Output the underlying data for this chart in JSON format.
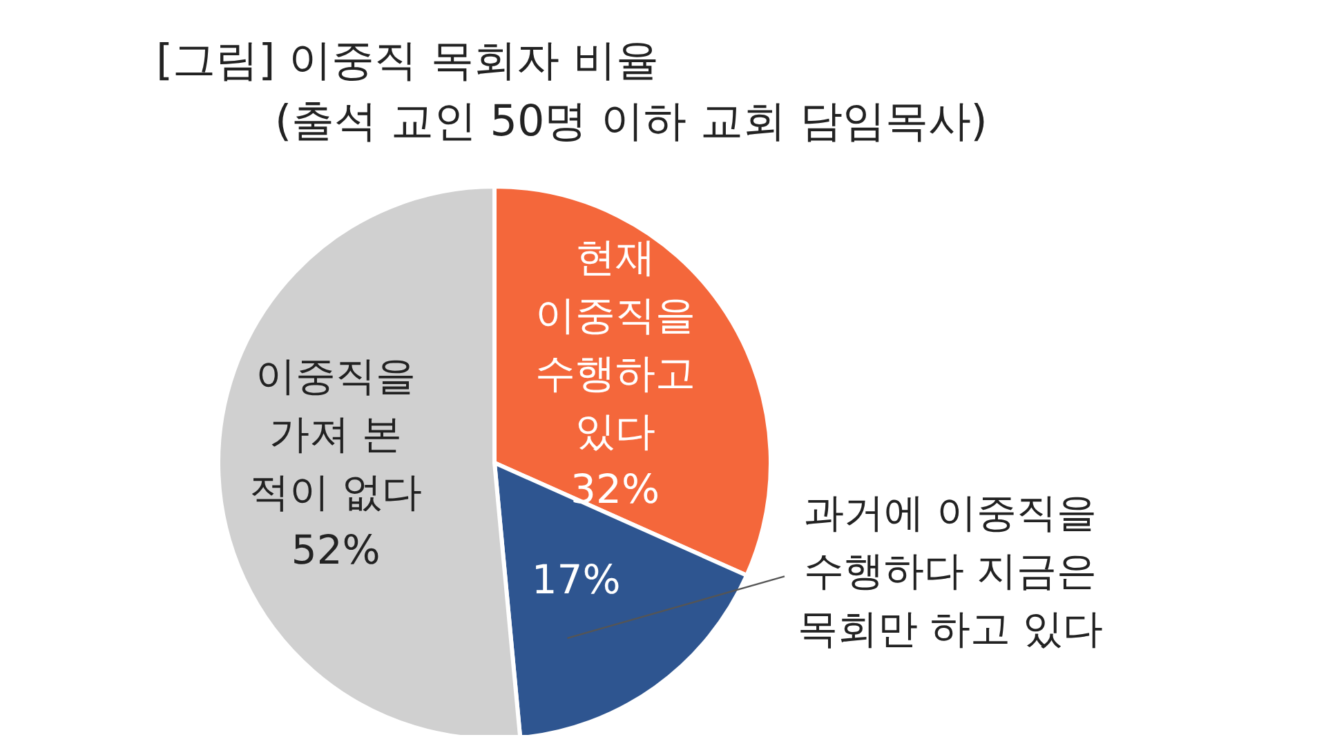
{
  "chart_data": {
    "type": "pie",
    "title": "[그림] 이중직 목회자 비율",
    "subtitle": "(출석 교인 50명 이하 교회 담임목사)",
    "categories": [
      "현재 이중직을 수행하고 있다",
      "과거에 이중직을 수행하다 지금은 목회만 하고 있다",
      "이중직을 가져 본 적이 없다"
    ],
    "values": [
      32,
      17,
      52
    ],
    "value_labels": [
      "32%",
      "17%",
      "52%"
    ],
    "colors": [
      "#f4673b",
      "#2e5590",
      "#d0d0d0"
    ],
    "legend": false
  }
}
